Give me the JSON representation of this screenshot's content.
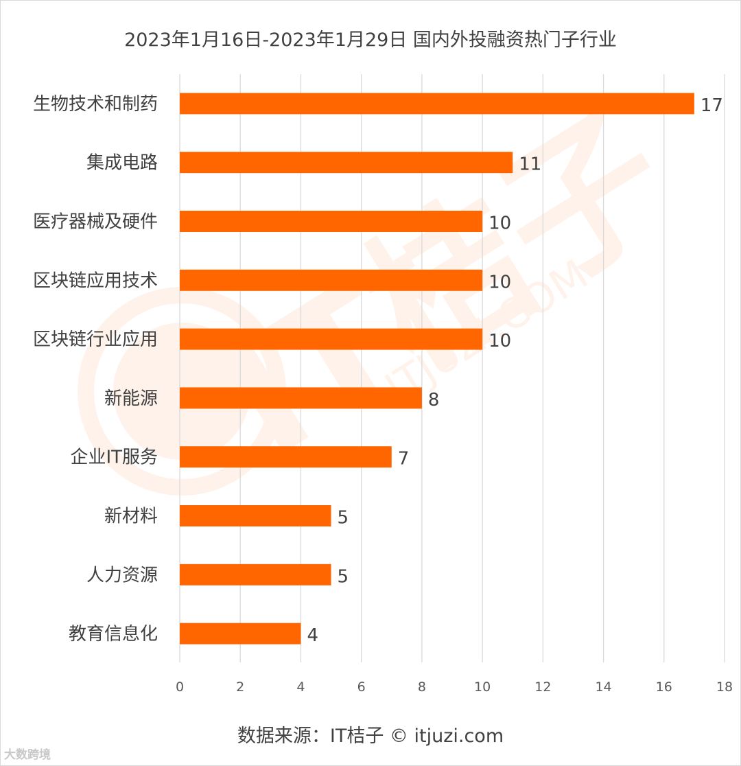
{
  "chart_data": {
    "type": "bar",
    "orientation": "horizontal",
    "title": "2023年1月16日-2023年1月29日 国内外投融资热门子行业",
    "categories": [
      "生物技术和制药",
      "集成电路",
      "医疗器械及硬件",
      "区块链应用技术",
      "区块链行业应用",
      "新能源",
      "企业IT服务",
      "新材料",
      "人力资源",
      "教育信息化"
    ],
    "values": [
      17,
      11,
      10,
      10,
      10,
      8,
      7,
      5,
      5,
      4
    ],
    "xlim": [
      0,
      18
    ],
    "xticks": [
      0,
      2,
      4,
      6,
      8,
      10,
      12,
      14,
      16,
      18
    ],
    "bar_color": "#ff6600",
    "grid": "vertical",
    "data_labels": true,
    "legend": "none"
  },
  "source_note": "数据来源：IT桔子 © itjuzi.com",
  "brand_mark": "大数跨境",
  "watermark_text": "IT桔子",
  "watermark_url": "ITJUZI.COM",
  "watermark_color": "#ff6600"
}
